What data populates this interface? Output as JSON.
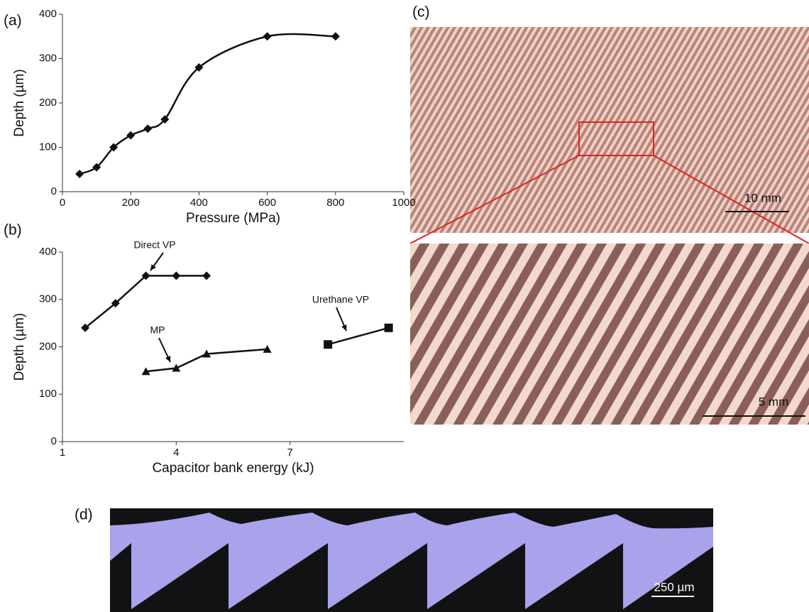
{
  "panel_labels": [
    "(a)",
    "(b)",
    "(c)",
    "(d)"
  ],
  "chart_data": [
    {
      "type": "line",
      "smooth": true,
      "xlabel": "Pressure (MPa)",
      "ylabel": "Depth (µm)",
      "xlim": [
        0,
        1000
      ],
      "xticks": [
        0,
        200,
        400,
        600,
        800,
        1000
      ],
      "ylim": [
        0,
        400
      ],
      "yticks": [
        0,
        100,
        200,
        300,
        400
      ],
      "series": [
        {
          "color": "#111111",
          "marker": "diamond",
          "x": [
            50,
            100,
            150,
            200,
            250,
            300,
            400,
            600,
            800
          ],
          "values": [
            40,
            55,
            100,
            127,
            142,
            163,
            280,
            350,
            350
          ]
        }
      ]
    },
    {
      "type": "line",
      "smooth": false,
      "xlabel": "Capacitor bank energy (kJ)",
      "ylabel": "Depth (µm)",
      "xlim": [
        1,
        10
      ],
      "xticks": [
        1,
        4,
        7
      ],
      "ylim": [
        0,
        400
      ],
      "yticks": [
        0,
        100,
        200,
        300,
        400
      ],
      "series": [
        {
          "name": "Direct VP",
          "color": "#111111",
          "marker": "diamond",
          "x": [
            1.6,
            2.4,
            3.2,
            4,
            4.8
          ],
          "values": [
            240,
            292,
            350,
            350,
            350
          ]
        },
        {
          "name": "MP",
          "color": "#111111",
          "marker": "triangle",
          "x": [
            3.2,
            4,
            4.8,
            6.4
          ],
          "values": [
            148,
            155,
            185,
            195
          ]
        },
        {
          "name": "Urethane VP",
          "color": "#111111",
          "marker": "square",
          "x": [
            8,
            9.6
          ],
          "values": [
            205,
            240
          ]
        }
      ]
    }
  ],
  "scale_bars": {
    "c_top": "10 mm",
    "c_bottom": "5 mm",
    "d": "250 µm"
  }
}
